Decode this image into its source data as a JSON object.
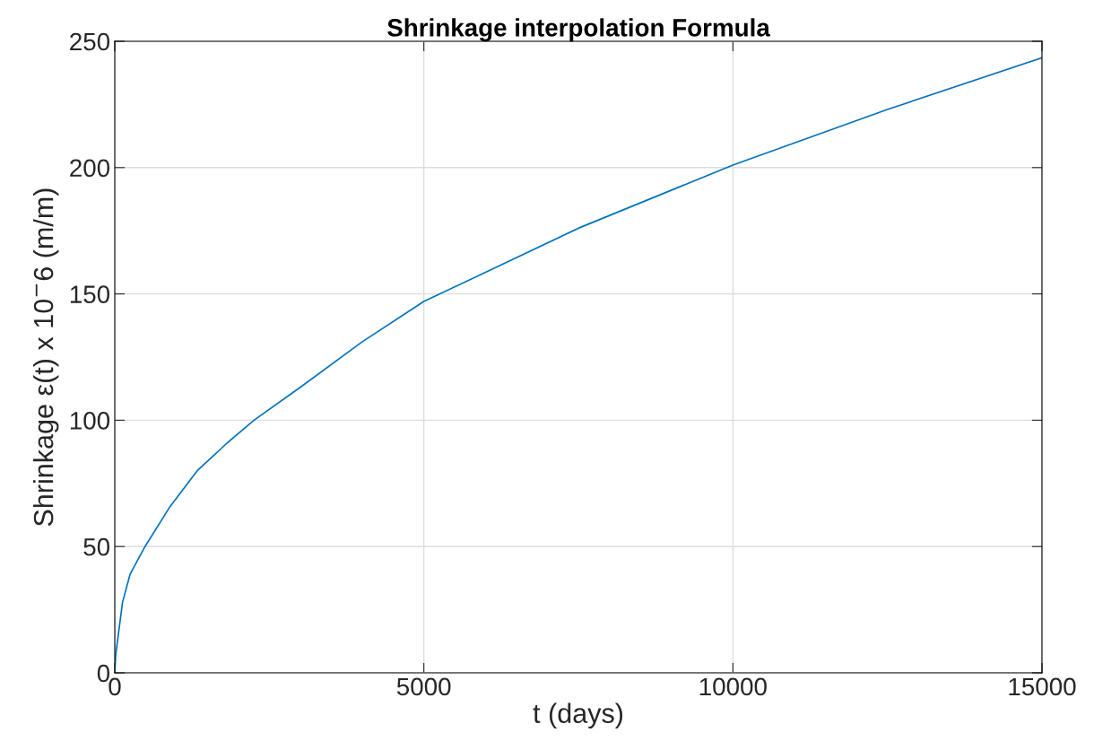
{
  "chart_data": {
    "type": "line",
    "title": "Shrinkage interpolation Formula",
    "xlabel": "t (days)",
    "ylabel": "Shrinkage ε(t) x 10$^{−}$6 (m/m)",
    "series": [
      {
        "color": "#0072bd",
        "x": [
          0,
          14,
          126,
          247,
          489,
          899,
          1334,
          1818,
          2253,
          3000,
          4000,
          5000,
          7500,
          10000,
          12500,
          15000
        ],
        "values": [
          0,
          7,
          28,
          39,
          50,
          66,
          80,
          91,
          100,
          113,
          131,
          147,
          176,
          201,
          223,
          243.5
        ]
      }
    ],
    "xlim": [
      0,
      15000
    ],
    "ylim": [
      0,
      250
    ],
    "xticks": [
      0,
      5000,
      10000,
      15000
    ],
    "yticks": [
      0,
      50,
      100,
      150,
      200,
      250
    ],
    "grid": true
  }
}
